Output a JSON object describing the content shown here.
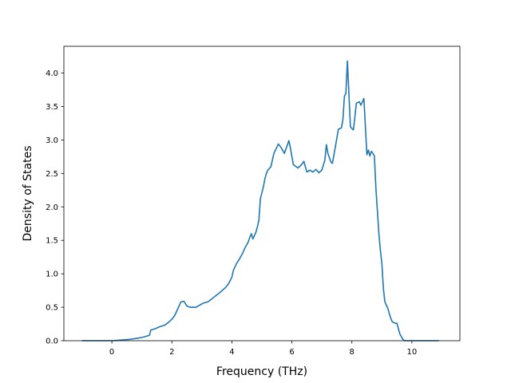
{
  "chart_data": {
    "type": "line",
    "title": "",
    "xlabel": "Frequency (THz)",
    "ylabel": "Density of States",
    "xlim": [
      -1.6,
      11.6
    ],
    "ylim": [
      0.0,
      4.4
    ],
    "xticks": [
      0,
      2,
      4,
      6,
      8,
      10
    ],
    "xtick_labels": [
      "0",
      "2",
      "4",
      "6",
      "8",
      "10"
    ],
    "yticks": [
      0.0,
      0.5,
      1.0,
      1.5,
      2.0,
      2.5,
      3.0,
      3.5,
      4.0
    ],
    "ytick_labels": [
      "0.0",
      "0.5",
      "1.0",
      "1.5",
      "2.0",
      "2.5",
      "3.0",
      "3.5",
      "4.0"
    ],
    "grid": false,
    "legend": "none",
    "series": [
      {
        "color": "#1f77b4",
        "x": [
          -1.0,
          -0.5,
          0.0,
          0.3,
          0.6,
          0.9,
          1.1,
          1.25,
          1.3,
          1.45,
          1.6,
          1.75,
          1.85,
          2.0,
          2.1,
          2.2,
          2.3,
          2.4,
          2.5,
          2.6,
          2.7,
          2.8,
          3.0,
          3.1,
          3.2,
          3.4,
          3.6,
          3.8,
          3.9,
          4.0,
          4.05,
          4.15,
          4.25,
          4.35,
          4.45,
          4.55,
          4.6,
          4.65,
          4.7,
          4.8,
          4.85,
          4.9,
          4.95,
          5.05,
          5.1,
          5.15,
          5.2,
          5.3,
          5.4,
          5.55,
          5.65,
          5.75,
          5.9,
          5.95,
          6.05,
          6.15,
          6.2,
          6.3,
          6.4,
          6.5,
          6.6,
          6.7,
          6.8,
          6.9,
          7.0,
          7.1,
          7.15,
          7.2,
          7.3,
          7.35,
          7.45,
          7.55,
          7.65,
          7.7,
          7.75,
          7.8,
          7.85,
          7.9,
          7.95,
          8.0,
          8.05,
          8.15,
          8.25,
          8.3,
          8.4,
          8.45,
          8.5,
          8.55,
          8.6,
          8.65,
          8.7,
          8.75,
          8.8,
          8.9,
          8.95,
          9.0,
          9.05,
          9.1,
          9.2,
          9.25,
          9.3,
          9.35,
          9.45,
          9.5,
          9.6,
          9.7,
          9.75,
          9.8,
          9.85,
          9.9,
          10.0,
          10.5,
          10.9
        ],
        "y": [
          0.0,
          0.0,
          0.0,
          0.01,
          0.02,
          0.04,
          0.06,
          0.08,
          0.16,
          0.18,
          0.21,
          0.23,
          0.26,
          0.32,
          0.38,
          0.48,
          0.58,
          0.59,
          0.52,
          0.5,
          0.5,
          0.5,
          0.55,
          0.57,
          0.58,
          0.65,
          0.72,
          0.8,
          0.86,
          0.95,
          1.05,
          1.15,
          1.22,
          1.3,
          1.4,
          1.48,
          1.55,
          1.6,
          1.52,
          1.62,
          1.7,
          1.8,
          2.12,
          2.3,
          2.42,
          2.5,
          2.55,
          2.6,
          2.8,
          2.94,
          2.88,
          2.8,
          2.99,
          2.88,
          2.63,
          2.6,
          2.58,
          2.62,
          2.68,
          2.52,
          2.55,
          2.52,
          2.56,
          2.51,
          2.55,
          2.7,
          2.93,
          2.8,
          2.67,
          2.65,
          2.9,
          3.16,
          3.18,
          3.3,
          3.65,
          3.7,
          4.18,
          3.7,
          3.2,
          3.17,
          3.15,
          3.55,
          3.57,
          3.52,
          3.62,
          3.2,
          2.78,
          2.85,
          2.76,
          2.83,
          2.8,
          2.76,
          2.28,
          1.6,
          1.35,
          1.15,
          0.78,
          0.58,
          0.48,
          0.4,
          0.33,
          0.28,
          0.26,
          0.26,
          0.1,
          0.02,
          0.0,
          0.0,
          0.0,
          0.0,
          0.0,
          0.0,
          0.0
        ]
      }
    ]
  }
}
